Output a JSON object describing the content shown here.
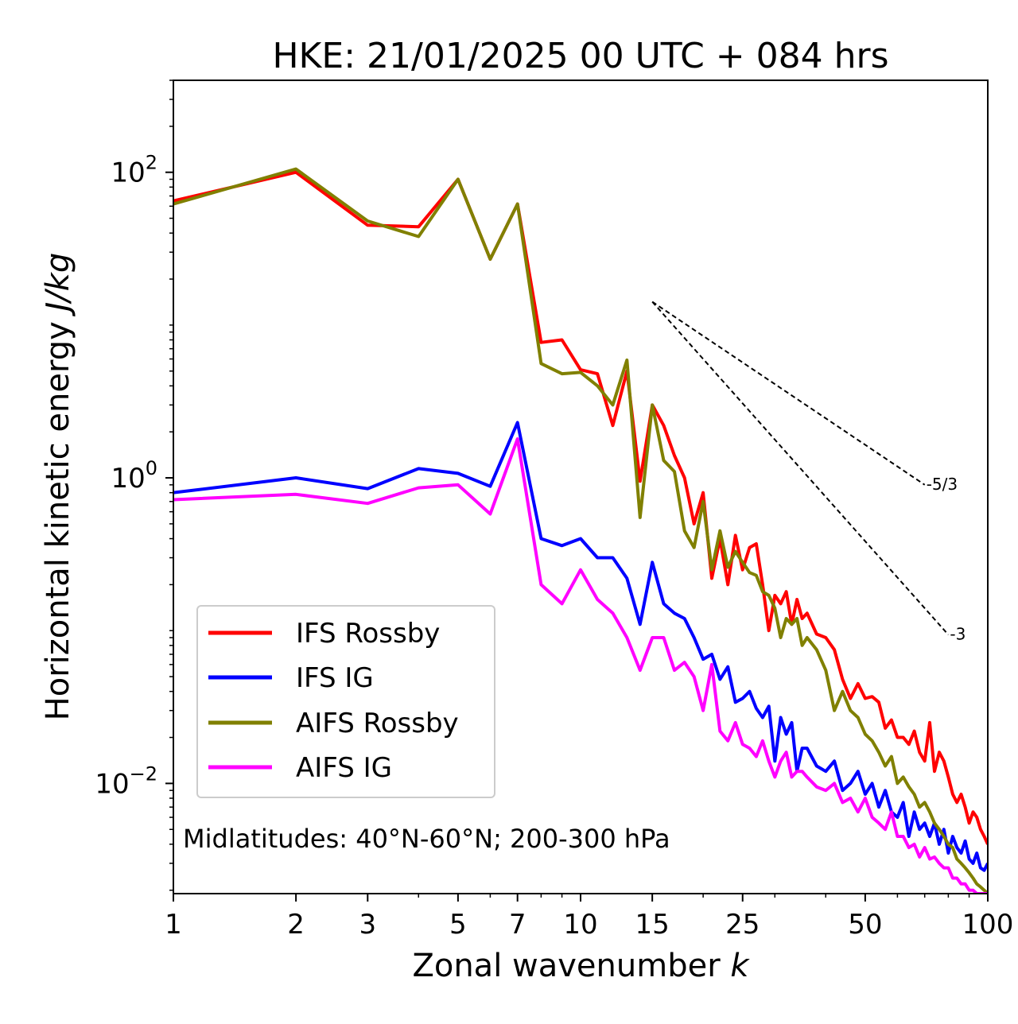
{
  "chart_data": {
    "type": "line",
    "title": "HKE: 21/01/2025 00 UTC + 084 hrs",
    "xlabel": "Zonal wavenumber",
    "xlabel_var": "k",
    "ylabel": "Horizontal kinetic energy",
    "ylabel_unit": "J/kg",
    "x_scale": "log",
    "y_scale": "log",
    "xlim": [
      1,
      100
    ],
    "ylim": [
      0.0019,
      400
    ],
    "x_ticks": [
      1,
      2,
      3,
      5,
      7,
      10,
      15,
      25,
      50,
      100
    ],
    "x_tick_labels": [
      "1",
      "2",
      "3",
      "5",
      "7",
      "10",
      "15",
      "25",
      "50",
      "100"
    ],
    "y_ticks": [
      0.01,
      1,
      100
    ],
    "y_tick_labels": [
      {
        "base": "10",
        "exp": "−2"
      },
      {
        "base": "10",
        "exp": "0"
      },
      {
        "base": "10",
        "exp": "2"
      }
    ],
    "grid": false,
    "legend_position": "lower-left",
    "annotation": "Midlatitudes: 40°N-60°N; 200-300 hPa",
    "reference_lines": [
      {
        "label": "-5/3",
        "slope": -1.6667,
        "x": [
          15,
          70
        ],
        "y": [
          14.2,
          0.9
        ]
      },
      {
        "label": "-3",
        "slope": -3,
        "x": [
          15,
          80
        ],
        "y": [
          14.2,
          0.094
        ]
      }
    ],
    "series": [
      {
        "name": "IFS Rossby",
        "color": "#ff0000",
        "x": [
          1,
          2,
          3,
          4,
          5,
          6,
          7,
          8,
          9,
          10,
          11,
          12,
          13,
          14,
          15,
          16,
          17,
          18,
          19,
          20,
          21,
          22,
          23,
          24,
          25,
          26,
          27,
          28,
          29,
          30,
          31,
          32,
          33,
          34,
          35,
          36,
          38,
          40,
          42,
          44,
          46,
          48,
          50,
          52,
          54,
          56,
          58,
          60,
          62,
          64,
          66,
          68,
          70,
          72,
          74,
          76,
          78,
          80,
          82,
          84,
          86,
          88,
          90,
          92,
          94,
          96,
          98,
          100
        ],
        "y": [
          65,
          100,
          45,
          44,
          90,
          27,
          62,
          7.7,
          8.0,
          5.1,
          4.8,
          2.2,
          5.0,
          0.95,
          3.0,
          2.2,
          1.4,
          1.0,
          0.5,
          0.8,
          0.22,
          0.4,
          0.2,
          0.42,
          0.25,
          0.35,
          0.37,
          0.2,
          0.1,
          0.17,
          0.15,
          0.18,
          0.11,
          0.16,
          0.12,
          0.13,
          0.095,
          0.09,
          0.075,
          0.048,
          0.036,
          0.045,
          0.036,
          0.037,
          0.034,
          0.023,
          0.026,
          0.02,
          0.02,
          0.018,
          0.022,
          0.016,
          0.014,
          0.025,
          0.012,
          0.016,
          0.014,
          0.011,
          0.0085,
          0.0075,
          0.0085,
          0.007,
          0.0055,
          0.0065,
          0.006,
          0.005,
          0.0045,
          0.004
        ]
      },
      {
        "name": "IFS IG",
        "color": "#0000ff",
        "x": [
          1,
          2,
          3,
          4,
          5,
          6,
          7,
          8,
          9,
          10,
          11,
          12,
          13,
          14,
          15,
          16,
          17,
          18,
          19,
          20,
          21,
          22,
          23,
          24,
          25,
          26,
          27,
          28,
          29,
          30,
          31,
          32,
          33,
          34,
          35,
          36,
          38,
          40,
          42,
          44,
          46,
          48,
          50,
          52,
          54,
          56,
          58,
          60,
          62,
          64,
          66,
          68,
          70,
          72,
          74,
          76,
          78,
          80,
          82,
          84,
          86,
          88,
          90,
          92,
          94,
          96,
          98,
          100
        ],
        "y": [
          0.8,
          1.0,
          0.85,
          1.15,
          1.07,
          0.88,
          2.3,
          0.4,
          0.36,
          0.4,
          0.3,
          0.3,
          0.22,
          0.11,
          0.28,
          0.15,
          0.13,
          0.12,
          0.09,
          0.065,
          0.07,
          0.048,
          0.058,
          0.034,
          0.036,
          0.04,
          0.031,
          0.027,
          0.032,
          0.014,
          0.027,
          0.021,
          0.025,
          0.012,
          0.017,
          0.017,
          0.013,
          0.012,
          0.014,
          0.009,
          0.01,
          0.012,
          0.0085,
          0.01,
          0.007,
          0.009,
          0.0065,
          0.006,
          0.0075,
          0.0045,
          0.0065,
          0.005,
          0.0055,
          0.0045,
          0.0055,
          0.004,
          0.005,
          0.0035,
          0.0045,
          0.0038,
          0.0035,
          0.0042,
          0.0032,
          0.003,
          0.0035,
          0.0028,
          0.0027,
          0.003
        ]
      },
      {
        "name": "AIFS Rossby",
        "color": "#808000",
        "x": [
          1,
          2,
          3,
          4,
          5,
          6,
          7,
          8,
          9,
          10,
          11,
          12,
          13,
          14,
          15,
          16,
          17,
          18,
          19,
          20,
          21,
          22,
          23,
          24,
          25,
          26,
          27,
          28,
          29,
          30,
          31,
          32,
          33,
          34,
          35,
          36,
          38,
          40,
          42,
          44,
          46,
          48,
          50,
          52,
          54,
          56,
          58,
          60,
          62,
          64,
          66,
          68,
          70,
          72,
          74,
          76,
          78,
          80,
          82,
          84,
          86,
          88,
          90,
          92,
          94,
          96,
          98,
          100
        ],
        "y": [
          62,
          105,
          48,
          38,
          90,
          27,
          62,
          5.6,
          4.8,
          4.9,
          4.0,
          3.0,
          5.9,
          0.55,
          3.0,
          1.3,
          1.1,
          0.45,
          0.35,
          0.7,
          0.25,
          0.45,
          0.26,
          0.33,
          0.28,
          0.24,
          0.23,
          0.18,
          0.17,
          0.14,
          0.09,
          0.12,
          0.11,
          0.12,
          0.08,
          0.09,
          0.075,
          0.055,
          0.03,
          0.04,
          0.03,
          0.027,
          0.021,
          0.019,
          0.016,
          0.013,
          0.015,
          0.01,
          0.011,
          0.0095,
          0.0085,
          0.007,
          0.0075,
          0.0065,
          0.0055,
          0.005,
          0.0045,
          0.004,
          0.0038,
          0.0032,
          0.003,
          0.0028,
          0.0026,
          0.0024,
          0.0022,
          0.0021,
          0.002,
          0.0019
        ]
      },
      {
        "name": "AIFS IG",
        "color": "#ff00ff",
        "x": [
          1,
          2,
          3,
          4,
          5,
          6,
          7,
          8,
          9,
          10,
          11,
          12,
          13,
          14,
          15,
          16,
          17,
          18,
          19,
          20,
          21,
          22,
          23,
          24,
          25,
          26,
          27,
          28,
          29,
          30,
          31,
          32,
          33,
          34,
          35,
          36,
          38,
          40,
          42,
          44,
          46,
          48,
          50,
          52,
          54,
          56,
          58,
          60,
          62,
          64,
          66,
          68,
          70,
          72,
          74,
          76,
          78,
          80,
          82,
          84,
          86,
          88,
          90,
          92,
          94,
          96,
          98,
          100
        ],
        "y": [
          0.72,
          0.78,
          0.68,
          0.86,
          0.9,
          0.58,
          1.8,
          0.2,
          0.15,
          0.25,
          0.16,
          0.13,
          0.09,
          0.055,
          0.09,
          0.09,
          0.055,
          0.062,
          0.05,
          0.03,
          0.06,
          0.022,
          0.019,
          0.025,
          0.018,
          0.017,
          0.015,
          0.019,
          0.014,
          0.011,
          0.014,
          0.016,
          0.011,
          0.012,
          0.012,
          0.011,
          0.0095,
          0.009,
          0.01,
          0.0075,
          0.008,
          0.0065,
          0.008,
          0.006,
          0.0055,
          0.005,
          0.0065,
          0.0045,
          0.0045,
          0.0038,
          0.004,
          0.0033,
          0.0038,
          0.0032,
          0.0033,
          0.003,
          0.0028,
          0.0028,
          0.0024,
          0.0024,
          0.0022,
          0.0022,
          0.002,
          0.002,
          0.0019,
          0.0019,
          0.0019,
          0.0019
        ]
      }
    ]
  }
}
